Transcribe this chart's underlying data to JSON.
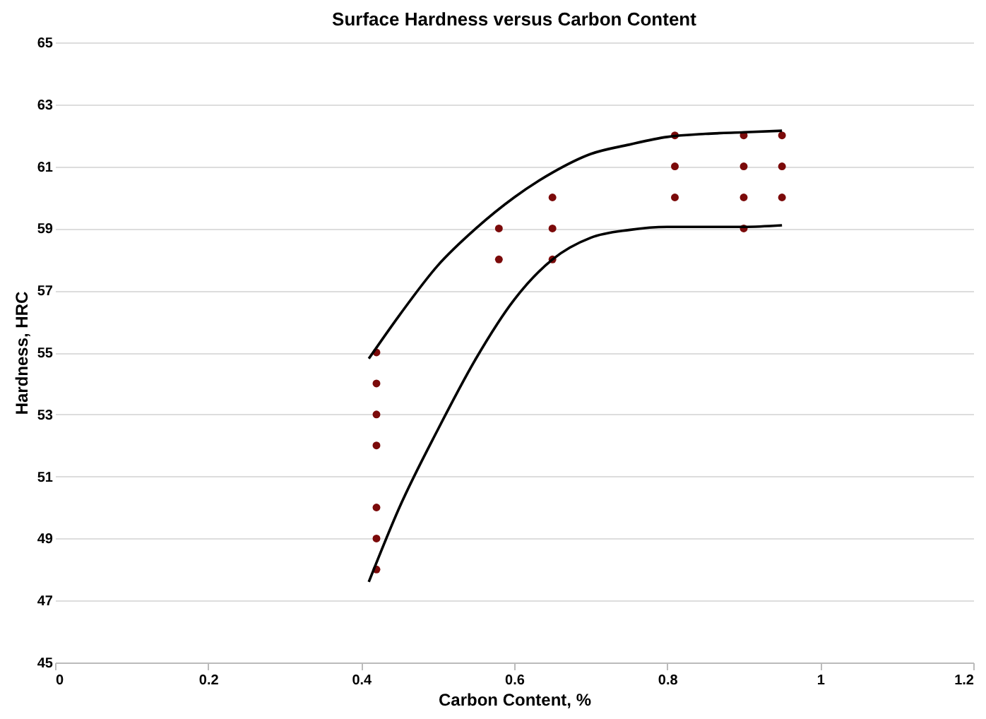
{
  "chart_data": {
    "type": "scatter",
    "title": "Surface Hardness versus Carbon Content",
    "xlabel": "Carbon Content, %",
    "ylabel": "Hardness, HRC",
    "xlim": [
      0,
      1.2
    ],
    "xticks": [
      0,
      0.2,
      0.4,
      0.6,
      0.8,
      1,
      1.2
    ],
    "ylim": [
      45,
      65
    ],
    "yticks": [
      45,
      47,
      49,
      51,
      53,
      55,
      57,
      59,
      61,
      63,
      65
    ],
    "grid": "y",
    "series": [
      {
        "color": "#7b0a0a",
        "marker": "circle",
        "x": [
          0.42,
          0.42,
          0.42,
          0.42,
          0.42,
          0.42,
          0.42,
          0.58,
          0.58,
          0.65,
          0.65,
          0.65,
          0.81,
          0.81,
          0.81,
          0.9,
          0.9,
          0.9,
          0.9,
          0.95,
          0.95,
          0.95
        ],
        "values": [
          55,
          54,
          53,
          52,
          50,
          49,
          48,
          59,
          58,
          60,
          59,
          58,
          62,
          61,
          60,
          62,
          61,
          60,
          59,
          62,
          61,
          60
        ]
      },
      {
        "type": "line",
        "color": "#000000",
        "line_style": "solid",
        "x": [
          0.41,
          0.45,
          0.5,
          0.55,
          0.6,
          0.65,
          0.7,
          0.75,
          0.8,
          0.85,
          0.9,
          0.95
        ],
        "values": [
          54.8,
          56.2,
          57.8,
          59,
          60,
          60.8,
          61.4,
          61.7,
          61.95,
          62.05,
          62.1,
          62.15
        ]
      },
      {
        "type": "line",
        "color": "#000000",
        "line_style": "solid",
        "x": [
          0.41,
          0.45,
          0.5,
          0.55,
          0.6,
          0.65,
          0.7,
          0.75,
          0.8,
          0.9,
          0.95
        ],
        "values": [
          47.6,
          50,
          52.5,
          54.8,
          56.7,
          58,
          58.7,
          58.95,
          59.05,
          59.05,
          59.1
        ]
      }
    ]
  }
}
